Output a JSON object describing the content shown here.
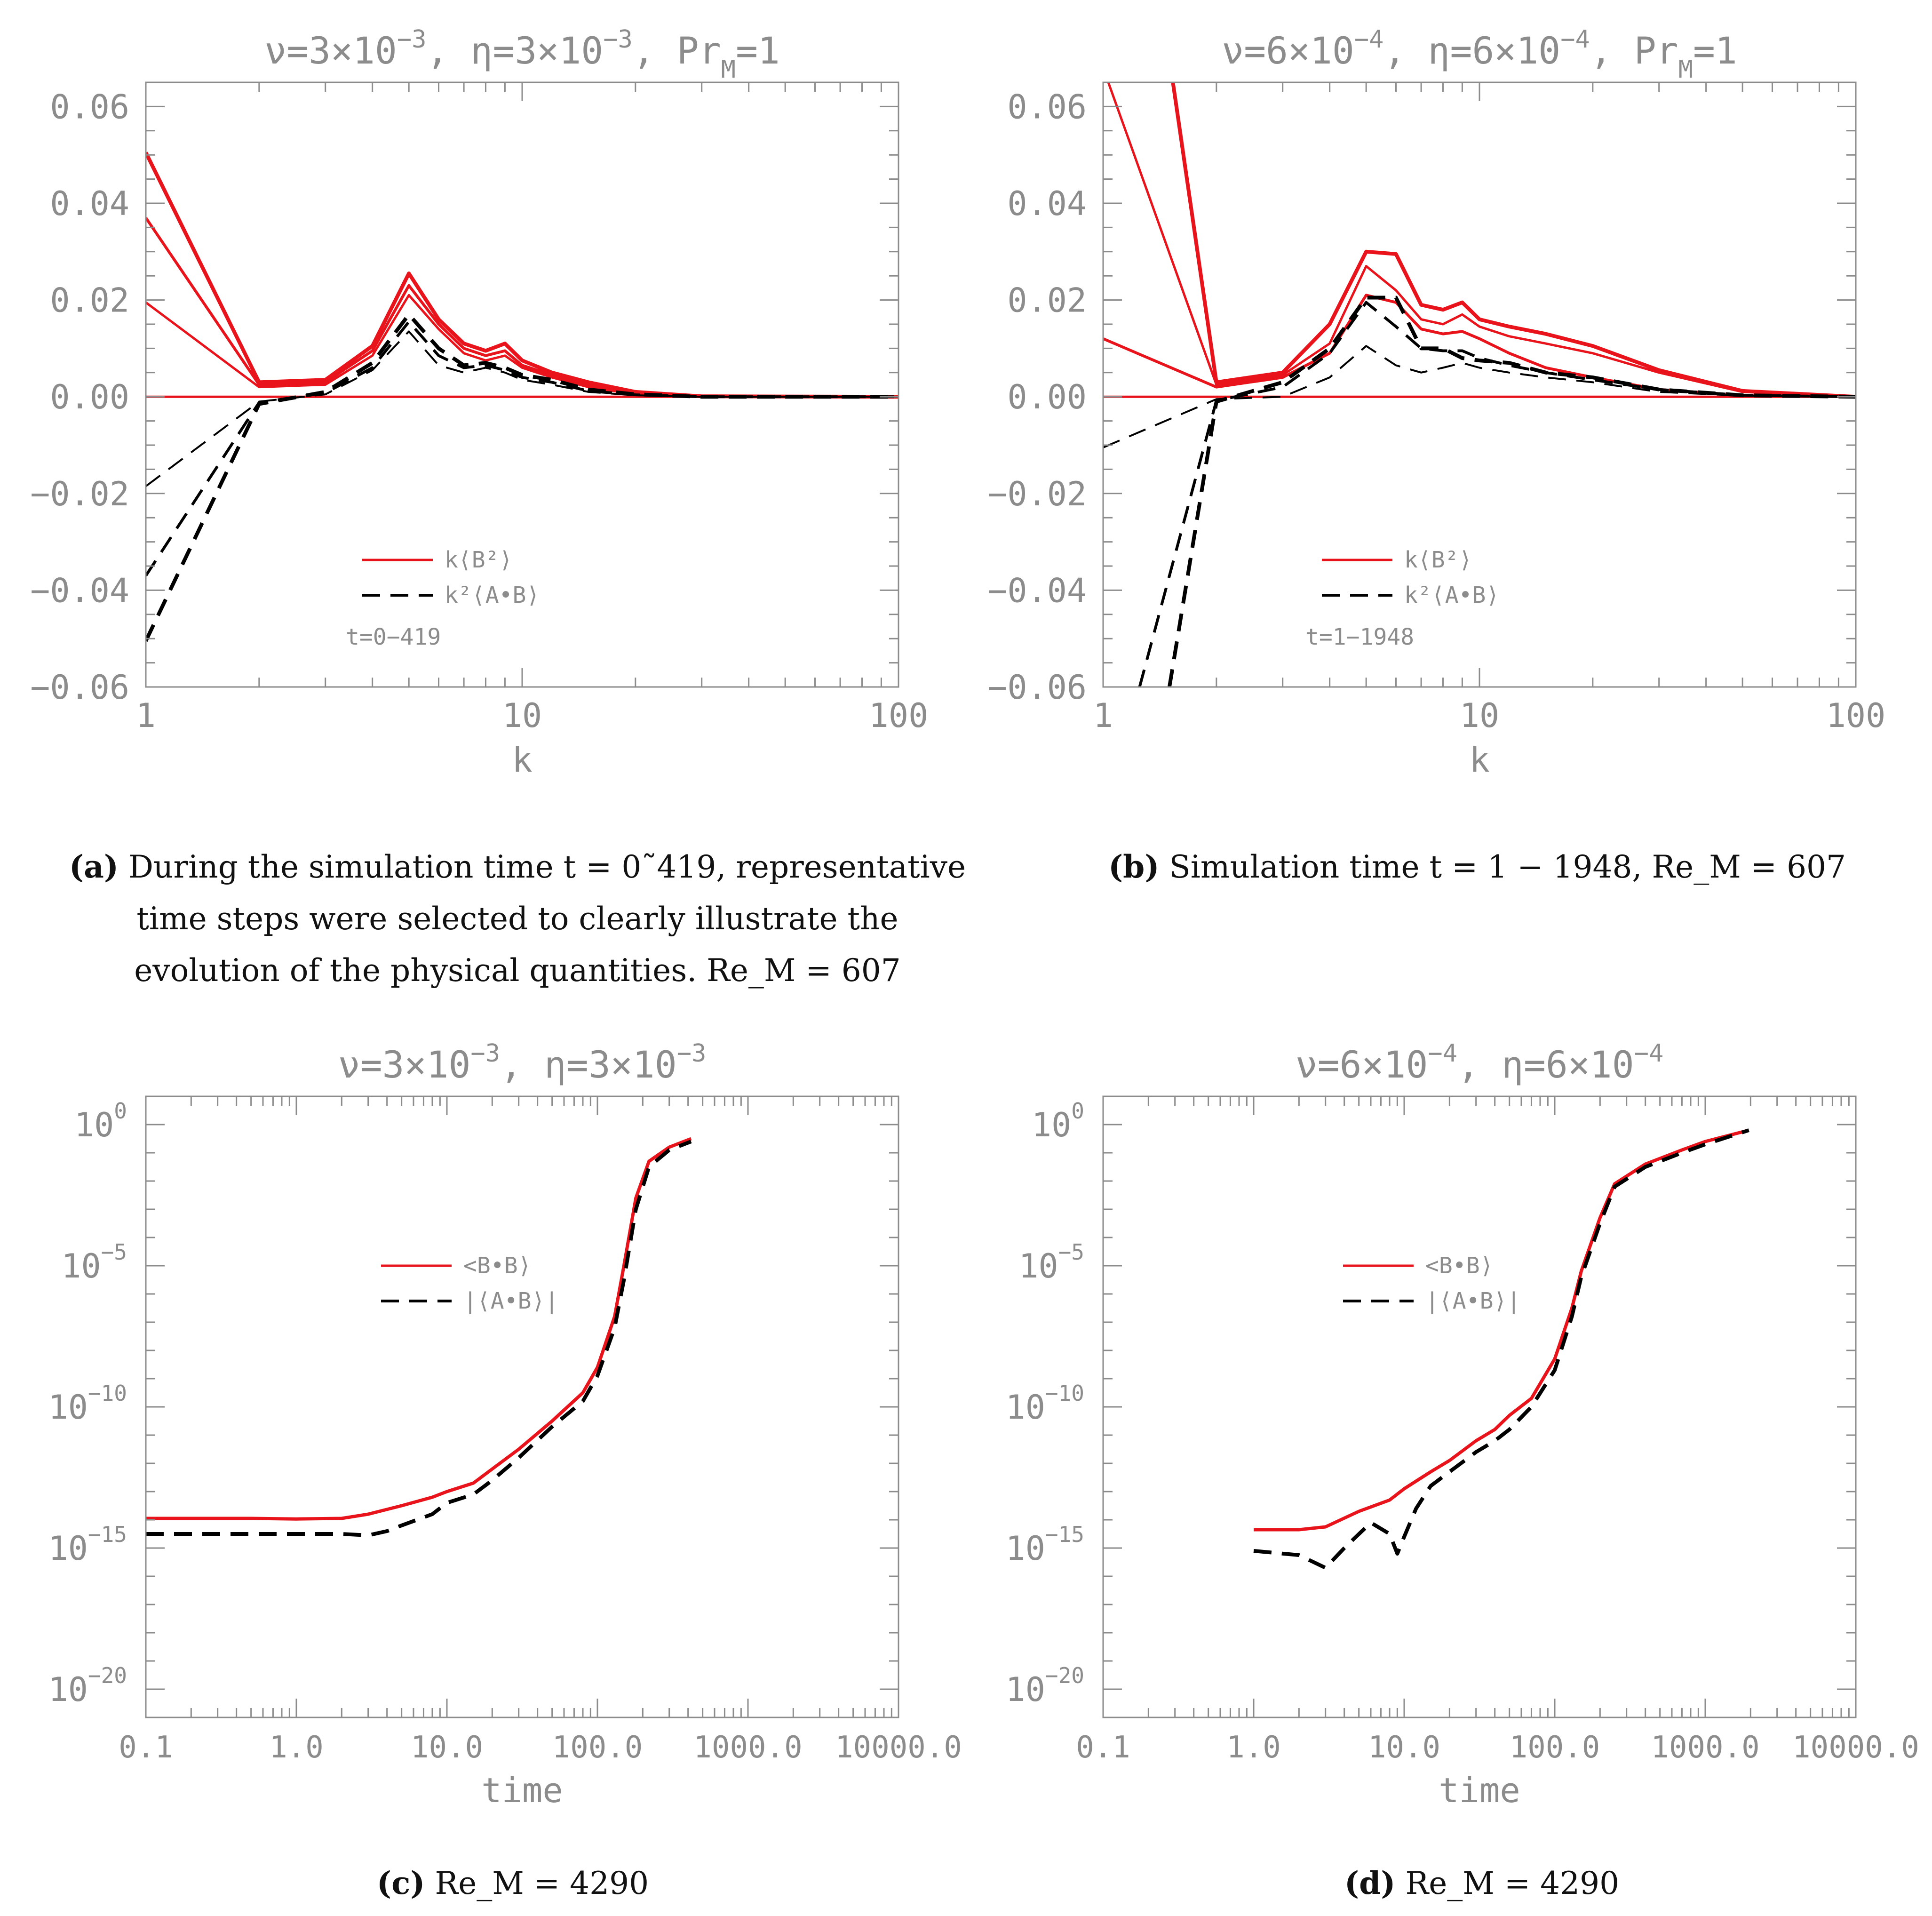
{
  "chart_data": [
    {
      "id": "a",
      "type": "line",
      "title": "ν=3×10⁻³, η=3×10⁻³, Pr_M=1",
      "title_parts": [
        "ν=3×10",
        "−3",
        ", η=3×10",
        "−3",
        ", Pr",
        "M",
        "=1"
      ],
      "xlabel": "k",
      "xscale": "log",
      "xlim": [
        1,
        100
      ],
      "xticks": [
        1,
        10,
        100
      ],
      "xtick_labels": [
        "1",
        "10",
        "100"
      ],
      "ylim": [
        -0.06,
        0.065
      ],
      "yticks": [
        -0.06,
        -0.04,
        -0.02,
        0.0,
        0.02,
        0.04,
        0.06
      ],
      "ytick_labels": [
        "−0.06",
        "−0.04",
        "−0.02",
        "0.00",
        "0.02",
        "0.04",
        "0.06"
      ],
      "legend": {
        "entries": [
          "k⟨B²⟩",
          "k²⟨A•B⟩"
        ],
        "note": "t=0−419"
      },
      "series": [
        {
          "name": "k⟨B²⟩",
          "style": "red",
          "width": 5,
          "x": [
            1,
            2,
            3,
            4,
            5,
            6,
            7,
            8,
            9,
            10,
            12,
            15,
            20,
            30,
            100
          ],
          "y": [
            0.0195,
            0.002,
            0.0025,
            0.0085,
            0.021,
            0.014,
            0.009,
            0.0075,
            0.0085,
            0.006,
            0.004,
            0.002,
            0.0005,
            0.0,
            0.0
          ]
        },
        {
          "name": "k⟨B²⟩",
          "style": "red",
          "width": 6,
          "x": [
            1,
            2,
            3,
            4,
            5,
            6,
            7,
            8,
            9,
            10,
            12,
            15,
            20,
            30,
            100
          ],
          "y": [
            0.037,
            0.0025,
            0.003,
            0.0095,
            0.023,
            0.015,
            0.01,
            0.0085,
            0.0095,
            0.0065,
            0.0045,
            0.0025,
            0.0007,
            0.0,
            0.0
          ]
        },
        {
          "name": "k⟨B²⟩",
          "style": "red",
          "width": 8,
          "x": [
            1,
            2,
            3,
            4,
            5,
            6,
            7,
            8,
            9,
            10,
            12,
            15,
            20,
            30,
            100
          ],
          "y": [
            0.0505,
            0.003,
            0.0035,
            0.0105,
            0.0255,
            0.016,
            0.011,
            0.0095,
            0.011,
            0.0075,
            0.005,
            0.003,
            0.001,
            0.0001,
            0.0
          ]
        },
        {
          "name": "k⟨B²⟩",
          "style": "red",
          "width": 5,
          "x": [
            1,
            100
          ],
          "y": [
            0.0,
            0.0
          ]
        },
        {
          "name": "k²⟨A•B⟩",
          "style": "black-dash",
          "width": 4,
          "x": [
            1,
            2,
            3,
            4,
            5,
            6,
            7,
            8,
            9,
            10,
            12,
            15,
            20,
            30,
            100
          ],
          "y": [
            -0.0185,
            -0.001,
            0.0005,
            0.0055,
            0.0135,
            0.0065,
            0.005,
            0.006,
            0.005,
            0.0035,
            0.0025,
            0.001,
            0.0003,
            0.0,
            0.0
          ]
        },
        {
          "name": "k²⟨A•B⟩",
          "style": "black-dash",
          "width": 6,
          "x": [
            1,
            2,
            3,
            4,
            5,
            6,
            7,
            8,
            9,
            10,
            12,
            15,
            20,
            30,
            100
          ],
          "y": [
            -0.037,
            -0.0012,
            0.0008,
            0.006,
            0.0155,
            0.0085,
            0.006,
            0.0065,
            0.0055,
            0.004,
            0.003,
            0.0012,
            0.0004,
            0.0,
            0.0
          ]
        },
        {
          "name": "k²⟨A•B⟩",
          "style": "black-dash",
          "width": 8,
          "x": [
            1,
            2,
            3,
            4,
            5,
            6,
            7,
            8,
            9,
            10,
            12,
            15,
            20,
            30,
            100
          ],
          "y": [
            -0.0505,
            -0.0015,
            0.001,
            0.007,
            0.017,
            0.01,
            0.0065,
            0.007,
            0.006,
            0.0045,
            0.0035,
            0.0015,
            0.0005,
            0.0,
            0.0
          ]
        }
      ]
    },
    {
      "id": "b",
      "type": "line",
      "title": "ν=6×10⁻⁴, η=6×10⁻⁴, Pr_M=1",
      "title_parts": [
        "ν=6×10",
        "−4",
        ", η=6×10",
        "−4",
        ", Pr",
        "M",
        "=1"
      ],
      "xlabel": "k",
      "xscale": "log",
      "xlim": [
        1,
        100
      ],
      "xticks": [
        1,
        10,
        100
      ],
      "xtick_labels": [
        "1",
        "10",
        "100"
      ],
      "ylim": [
        -0.06,
        0.065
      ],
      "yticks": [
        -0.06,
        -0.04,
        -0.02,
        0.0,
        0.02,
        0.04,
        0.06
      ],
      "ytick_labels": [
        "−0.06",
        "−0.04",
        "−0.02",
        "0.00",
        "0.02",
        "0.04",
        "0.06"
      ],
      "legend": {
        "entries": [
          "k⟨B²⟩",
          "k²⟨A•B⟩"
        ],
        "note": "t=1−1948"
      },
      "series": [
        {
          "name": "k⟨B²⟩",
          "style": "red",
          "width": 6,
          "x": [
            1,
            2,
            3,
            4,
            5,
            6,
            7,
            8,
            9,
            10,
            12,
            15,
            20,
            30,
            50,
            100
          ],
          "y": [
            0.012,
            0.002,
            0.004,
            0.009,
            0.021,
            0.0195,
            0.014,
            0.013,
            0.0135,
            0.012,
            0.009,
            0.006,
            0.004,
            0.0015,
            0.0003,
            0.0
          ]
        },
        {
          "name": "k⟨B²⟩",
          "style": "red",
          "width": 5,
          "x": [
            1,
            2,
            3,
            4,
            5,
            6,
            7,
            8,
            9,
            10,
            12,
            15,
            20,
            30,
            50,
            100
          ],
          "y": [
            0.068,
            0.0025,
            0.0045,
            0.011,
            0.027,
            0.022,
            0.016,
            0.015,
            0.017,
            0.0145,
            0.0125,
            0.011,
            0.009,
            0.005,
            0.001,
            0.0
          ]
        },
        {
          "name": "k⟨B²⟩",
          "style": "red",
          "width": 8,
          "x": [
            1.5,
            2,
            3,
            4,
            5,
            6,
            7,
            8,
            9,
            10,
            12,
            15,
            20,
            30,
            50,
            100
          ],
          "y": [
            0.07,
            0.003,
            0.005,
            0.015,
            0.03,
            0.0295,
            0.019,
            0.018,
            0.0195,
            0.016,
            0.0145,
            0.013,
            0.0105,
            0.0055,
            0.0012,
            0.0
          ]
        },
        {
          "name": "k⟨B²⟩",
          "style": "red",
          "width": 5,
          "x": [
            1,
            100
          ],
          "y": [
            0.0,
            0.0
          ]
        },
        {
          "name": "k²⟨A•B⟩",
          "style": "black-dash",
          "width": 4,
          "x": [
            1,
            2,
            3,
            4,
            5,
            6,
            7,
            8,
            9,
            10,
            12,
            15,
            20,
            30,
            50,
            100
          ],
          "y": [
            -0.0105,
            -0.0005,
            0.0,
            0.004,
            0.0105,
            0.0065,
            0.005,
            0.006,
            0.007,
            0.006,
            0.005,
            0.004,
            0.003,
            0.001,
            0.0002,
            0.0
          ]
        },
        {
          "name": "k²⟨A•B⟩",
          "style": "black-dash",
          "width": 6,
          "x": [
            1.25,
            2,
            3,
            4,
            5,
            6,
            7,
            8,
            9,
            10,
            12,
            15,
            20,
            30,
            50,
            100
          ],
          "y": [
            -0.06,
            -0.0008,
            0.002,
            0.009,
            0.0195,
            0.0145,
            0.01,
            0.0095,
            0.0095,
            0.008,
            0.0065,
            0.005,
            0.0035,
            0.0015,
            0.0003,
            0.0
          ]
        },
        {
          "name": "k²⟨A•B⟩",
          "style": "black-dash",
          "width": 8,
          "x": [
            1.5,
            2,
            3,
            4,
            5,
            6,
            7,
            8,
            9,
            10,
            12,
            15,
            20,
            30,
            50,
            100
          ],
          "y": [
            -0.06,
            -0.001,
            0.003,
            0.01,
            0.0205,
            0.0205,
            0.01,
            0.01,
            0.008,
            0.0075,
            0.007,
            0.005,
            0.004,
            0.0015,
            0.0003,
            0.0
          ]
        }
      ]
    },
    {
      "id": "c",
      "type": "line",
      "title": "ν=3×10⁻³, η=3×10⁻³",
      "title_parts": [
        "ν=3×10",
        "−3",
        ", η=3×10",
        "−3"
      ],
      "xlabel": "time",
      "xscale": "log",
      "yscale": "log",
      "xlim": [
        0.1,
        10000
      ],
      "xticks": [
        0.1,
        1,
        10,
        100,
        1000,
        10000
      ],
      "xtick_labels": [
        "0.1",
        "1.0",
        "10.0",
        "100.0",
        "1000.0",
        "10000.0"
      ],
      "ylim": [
        -21,
        1
      ],
      "yticks": [
        0,
        -5,
        -10,
        -15,
        -20
      ],
      "ytick_labels": [
        "0",
        "−5",
        "−10",
        "−15",
        "−20"
      ],
      "legend": {
        "entries": [
          "<B•B⟩",
          "|⟨A•B⟩|"
        ]
      },
      "series": [
        {
          "name": "<B•B⟩",
          "style": "red",
          "width": 7,
          "x": [
            0.1,
            0.5,
            1,
            2,
            3,
            5,
            8,
            10,
            15,
            20,
            30,
            50,
            80,
            100,
            130,
            150,
            180,
            220,
            300,
            419
          ],
          "y": [
            -13.95,
            -13.95,
            -13.97,
            -13.95,
            -13.8,
            -13.5,
            -13.2,
            -13.0,
            -12.7,
            -12.2,
            -11.5,
            -10.5,
            -9.5,
            -8.6,
            -6.8,
            -5.0,
            -2.6,
            -1.3,
            -0.8,
            -0.5
          ]
        },
        {
          "name": "|⟨A•B⟩|",
          "style": "black-dash",
          "width": 8,
          "x": [
            0.1,
            0.5,
            1,
            2,
            3,
            4,
            5,
            8,
            10,
            15,
            20,
            30,
            50,
            80,
            100,
            130,
            150,
            180,
            220,
            300,
            419
          ],
          "y": [
            -14.5,
            -14.5,
            -14.5,
            -14.5,
            -14.55,
            -14.4,
            -14.2,
            -13.8,
            -13.4,
            -13.1,
            -12.6,
            -11.8,
            -10.7,
            -9.8,
            -8.9,
            -7.2,
            -5.5,
            -3.0,
            -1.5,
            -0.9,
            -0.6
          ]
        }
      ]
    },
    {
      "id": "d",
      "type": "line",
      "title": "ν=6×10⁻⁴, η=6×10⁻⁴",
      "title_parts": [
        "ν=6×10",
        "−4",
        ", η=6×10",
        "−4"
      ],
      "xlabel": "time",
      "xscale": "log",
      "yscale": "log",
      "xlim": [
        0.1,
        10000
      ],
      "xticks": [
        0.1,
        1,
        10,
        100,
        1000,
        10000
      ],
      "xtick_labels": [
        "0.1",
        "1.0",
        "10.0",
        "100.0",
        "1000.0",
        "10000.0"
      ],
      "ylim": [
        -21,
        1
      ],
      "yticks": [
        0,
        -5,
        -10,
        -15,
        -20
      ],
      "ytick_labels": [
        "0",
        "−5",
        "−10",
        "−15",
        "−20"
      ],
      "legend": {
        "entries": [
          "<B•B⟩",
          "|⟨A•B⟩|"
        ]
      },
      "series": [
        {
          "name": "<B•B⟩",
          "style": "red",
          "width": 7,
          "x": [
            1,
            2,
            3,
            5,
            8,
            10,
            15,
            20,
            30,
            40,
            50,
            70,
            100,
            130,
            150,
            200,
            250,
            400,
            700,
            1000,
            1948
          ],
          "y": [
            -14.35,
            -14.35,
            -14.25,
            -13.7,
            -13.3,
            -12.9,
            -12.3,
            -11.9,
            -11.2,
            -10.8,
            -10.3,
            -9.7,
            -8.3,
            -6.5,
            -5.2,
            -3.3,
            -2.1,
            -1.4,
            -0.9,
            -0.6,
            -0.2
          ]
        },
        {
          "name": "|⟨A•B⟩|",
          "style": "black-dash",
          "width": 8,
          "x": [
            1,
            2,
            3,
            4,
            6,
            8,
            9,
            10,
            12,
            15,
            20,
            30,
            40,
            50,
            70,
            100,
            130,
            150,
            200,
            250,
            400,
            700,
            1000,
            1948
          ],
          "y": [
            -15.1,
            -15.25,
            -15.7,
            -15.0,
            -14.1,
            -14.5,
            -15.2,
            -14.6,
            -13.6,
            -12.8,
            -12.3,
            -11.6,
            -11.2,
            -10.8,
            -10.0,
            -8.7,
            -6.8,
            -5.4,
            -3.5,
            -2.2,
            -1.5,
            -1.0,
            -0.7,
            -0.2
          ]
        }
      ]
    }
  ],
  "captions": {
    "a": {
      "label": "(a)",
      "lines": [
        "During the simulation time t = 0˜419, representative",
        "time steps were selected to clearly illustrate the",
        "evolution of the physical quantities. Re_M = 607"
      ]
    },
    "b": {
      "label": "(b)",
      "text": "Simulation time t = 1 − 1948, Re_M = 607"
    },
    "c": {
      "label": "(c)",
      "text": "Re_M = 4290"
    },
    "d": {
      "label": "(d)",
      "text": "Re_M = 4290"
    }
  },
  "colors": {
    "red": "#e8131b",
    "black": "#000000",
    "axis": "#8c8c8c",
    "caption": "#111111"
  }
}
